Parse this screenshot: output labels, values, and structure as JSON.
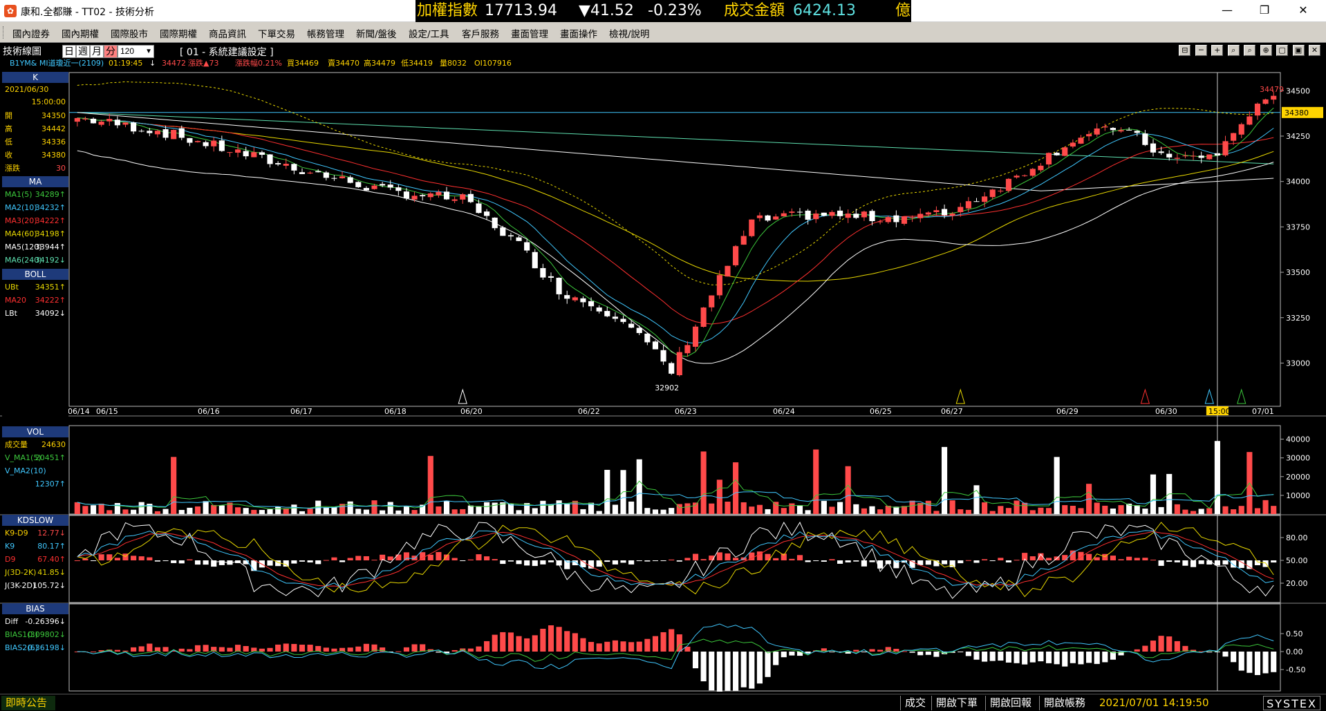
{
  "titlebar": {
    "app_title": "康和.全都賺 - TT02 - 技術分析",
    "index_label": "加權指數",
    "index_value": "17713.94",
    "index_change": "▼41.52",
    "index_pct": "-0.23%",
    "turnover_label": "成交金額",
    "turnover_value": "6424.13",
    "turnover_unit": "億",
    "minimize": "—",
    "restore": "❐",
    "close": "✕"
  },
  "menu": [
    "國內證券",
    "國內期權",
    "國際股市",
    "國際期權",
    "商品資訊",
    "下單交易",
    "帳務管理",
    "新聞/盤後",
    "設定/工具",
    "客戶服務",
    "畫面管理",
    "畫面操作",
    "檢視/說明"
  ],
  "toolbar": {
    "chart_name": "技術線圖",
    "periods": [
      "日",
      "週",
      "月",
      "分"
    ],
    "selected_period": "分",
    "count": "120",
    "setting": "[ 01 - 系統建議設定 ]",
    "icons": [
      "⊟",
      "─",
      "+",
      "⌕",
      "⌕",
      "⊕",
      "▢",
      "▣",
      "✕"
    ]
  },
  "quote": {
    "symbol": "B1YM&  MI道瓊近一(2109)",
    "time": "01:19:45",
    "arrow": "↓",
    "last": "34472",
    "change": "漲跌▲73",
    "pct": "漲跌幅0.21%",
    "bid": "買34469",
    "ask": "賣34470",
    "high": "高34479",
    "low": "低34419",
    "volume": "量8032",
    "oi": "OI107916"
  },
  "k_panel": {
    "title": "K",
    "date": "2021/06/30",
    "time": "15:00:00",
    "rows": [
      {
        "label": "開",
        "value": "34350"
      },
      {
        "label": "高",
        "value": "34442"
      },
      {
        "label": "低",
        "value": "34336"
      },
      {
        "label": "收",
        "value": "34380"
      },
      {
        "label": "漲跌",
        "value": "30"
      }
    ]
  },
  "ma_panel": {
    "title": "MA",
    "rows": [
      {
        "label": "MA1(5)",
        "value": "34289↑",
        "color": "#3cc83c"
      },
      {
        "label": "MA2(10)",
        "value": "34232↑",
        "color": "#40c8ff"
      },
      {
        "label": "MA3(20)",
        "value": "34222↑",
        "color": "#ff3030"
      },
      {
        "label": "MA4(60)",
        "value": "34198↑",
        "color": "#e8d800"
      },
      {
        "label": "MA5(120)",
        "value": "33944↑",
        "color": "#ffffff"
      },
      {
        "label": "MA6(240)",
        "value": "34192↓",
        "color": "#5ee0b0"
      }
    ]
  },
  "boll_panel": {
    "title": "BOLL",
    "rows": [
      {
        "label": "UBt",
        "value": "34351↑",
        "color": "#e8d800"
      },
      {
        "label": "MA20",
        "value": "34222↑",
        "color": "#ff3030"
      },
      {
        "label": "LBt",
        "value": "34092↓",
        "color": "#ffffff"
      }
    ]
  },
  "vol_panel": {
    "title": "VOL",
    "rows": [
      {
        "label": "成交量",
        "value": "24630",
        "color": "#ffd400"
      },
      {
        "label": "V_MA1(5)",
        "value": "20451↑",
        "color": "#3cc83c"
      },
      {
        "label": "V_MA2(10)",
        "value": "",
        "color": "#40c8ff"
      },
      {
        "label": "",
        "value": "12307↑",
        "color": "#40c8ff"
      }
    ]
  },
  "kd_panel": {
    "title": "KDSLOW",
    "rows": [
      {
        "label": "K9-D9",
        "value": "12.77↓",
        "color": "#ffd400"
      },
      {
        "label": "K9",
        "value": "80.17↑",
        "color": "#40c8ff"
      },
      {
        "label": "D9",
        "value": "67.40↑",
        "color": "#ff3030"
      },
      {
        "label": "J(3D-2K)",
        "value": "41.85↓",
        "color": "#e8d800"
      },
      {
        "label": "J(3K-2D)",
        "value": "105.72↓",
        "color": "#ffffff"
      }
    ]
  },
  "bias_panel": {
    "title": "BIAS",
    "rows": [
      {
        "label": "Diff",
        "value": "-0.26396↓",
        "color": "#ffffff"
      },
      {
        "label": "BIAS1(3)",
        "value": "0.09802↓",
        "color": "#3cc83c"
      },
      {
        "label": "BIAS2(6)",
        "value": "0.36198↓",
        "color": "#40c8ff"
      }
    ]
  },
  "axis": {
    "price_ticks": [
      "34500",
      "34250",
      "34000",
      "33750",
      "33500",
      "33250",
      "33000"
    ],
    "current_price": "34380",
    "vol_ticks": [
      "40000",
      "30000",
      "20000",
      "10000"
    ],
    "kd_ticks": [
      "80.00",
      "50.00",
      "20.00"
    ],
    "bias_ticks": [
      "0.50",
      "0.00",
      "-0.50"
    ],
    "dates": [
      "06/14",
      "06/15",
      "06/16",
      "06/17",
      "06/18",
      "06/20",
      "06/22",
      "06/23",
      "06/24",
      "06/25",
      "06/27",
      "06/29",
      "06/30",
      "07/01"
    ],
    "cursor_time": "15:00",
    "low_label": "32902",
    "high_label": "34479"
  },
  "statusbar": {
    "announce": "即時公告",
    "buttons": [
      "成交",
      "開啟下單",
      "開啟回報",
      "開啟帳務"
    ],
    "datetime": "2021/07/01 14:19:50",
    "logo": "SYSTEX"
  },
  "colors": {
    "up": "#ff4a4a",
    "down": "#ffffff",
    "ma1": "#3cc83c",
    "ma2": "#40c8ff",
    "ma3": "#ff3030",
    "ma4": "#e8d800",
    "ma5": "#ffffff",
    "ma6": "#5ee0b0"
  }
}
